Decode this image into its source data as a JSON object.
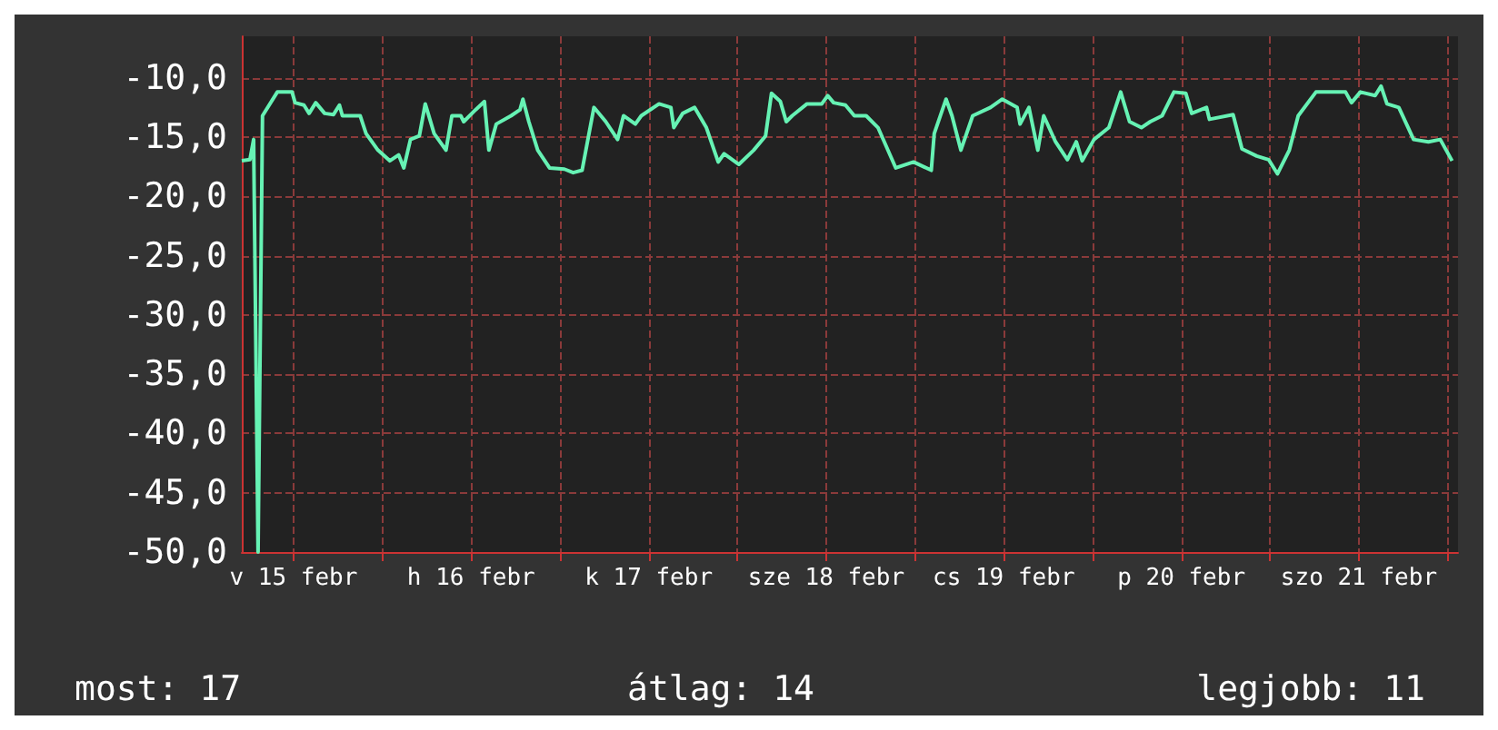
{
  "chart_data": {
    "type": "line",
    "x": [
      "--02-15T05:00",
      "--02-15T06:06",
      "--02-15T06:36",
      "--02-15T07:12",
      "--02-15T07:48",
      "--02-15T09:48",
      "--02-15T11:48",
      "--02-15T12:12",
      "--02-15T13:24",
      "--02-15T14:06",
      "--02-15T15:00",
      "--02-15T16:12",
      "--02-15T17:24",
      "--02-15T18:12",
      "--02-15T18:36",
      "--02-15T21:00",
      "--02-15T21:48",
      "--02-15T23:24",
      "--02-16T01:00",
      "--02-16T02:12",
      "--02-16T02:54",
      "--02-16T03:48",
      "--02-16T05:00",
      "--02-16T05:48",
      "--02-16T07:00",
      "--02-16T08:36",
      "--02-16T09:24",
      "--02-16T10:36",
      "--02-16T11:00",
      "--02-16T12:36",
      "--02-16T13:48",
      "--02-16T14:24",
      "--02-16T15:24",
      "--02-16T17:24",
      "--02-16T18:36",
      "--02-16T19:00",
      "--02-16T19:48",
      "--02-16T21:00",
      "--02-16T22:36",
      "--02-17T00:36",
      "--02-17T01:48",
      "--02-17T03:00",
      "--02-17T04:36",
      "--02-17T06:12",
      "--02-17T07:48",
      "--02-17T08:36",
      "--02-17T10:12",
      "--02-17T11:00",
      "--02-17T13:24",
      "--02-17T15:00",
      "--02-17T15:24",
      "--02-17T16:36",
      "--02-17T18:12",
      "--02-17T19:48",
      "--02-17T21:24",
      "--02-17T22:12",
      "--02-18T00:12",
      "--02-18T02:12",
      "--02-18T03:48",
      "--02-18T04:36",
      "--02-18T05:48",
      "--02-18T06:36",
      "--02-18T07:24",
      "--02-18T09:24",
      "--02-18T11:24",
      "--02-18T12:12",
      "--02-18T13:00",
      "--02-18T14:36",
      "--02-18T15:48",
      "--02-18T17:24",
      "--02-18T19:00",
      "--02-18T21:24",
      "--02-18T23:48",
      "--02-19T02:12",
      "--02-19T02:36",
      "--02-19T04:12",
      "--02-19T05:00",
      "--02-19T06:12",
      "--02-19T07:48",
      "--02-19T10:12",
      "--02-19T11:48",
      "--02-19T13:48",
      "--02-19T14:12",
      "--02-19T15:24",
      "--02-19T16:36",
      "--02-19T17:24",
      "--02-19T19:00",
      "--02-19T20:36",
      "--02-19T21:48",
      "--02-19T22:36",
      "--02-20T00:12",
      "--02-20T02:12",
      "--02-20T03:48",
      "--02-20T05:00",
      "--02-20T06:36",
      "--02-20T07:48",
      "--02-20T09:24",
      "--02-20T11:00",
      "--02-20T12:36",
      "--02-20T13:24",
      "--02-20T15:24",
      "--02-20T15:48",
      "--02-20T19:00",
      "--02-20T20:12",
      "--02-20T22:12",
      "--02-20T23:48",
      "--02-21T01:00",
      "--02-21T02:36",
      "--02-21T03:48",
      "--02-21T06:12",
      "--02-21T10:12",
      "--02-21T11:00",
      "--02-21T12:12",
      "--02-21T14:12",
      "--02-21T15:00",
      "--02-21T15:48",
      "--02-21T17:24",
      "--02-21T19:24",
      "--02-21T21:24",
      "--02-21T23:00",
      "--02-22T00:36"
    ],
    "series": [
      {
        "color": "#66f2b4",
        "values": [
          -17,
          -16.9,
          -15.2,
          -50,
          -13.2,
          -11.2,
          -11.2,
          -12.1,
          -12.3,
          -13,
          -12.1,
          -13,
          -13.1,
          -12.3,
          -13.2,
          -13.2,
          -14.7,
          -16.1,
          -17,
          -16.5,
          -17.6,
          -15.2,
          -14.9,
          -12.2,
          -14.7,
          -16.1,
          -13.2,
          -13.2,
          -13.7,
          -12.7,
          -12,
          -16.1,
          -13.9,
          -13.2,
          -12.7,
          -11.8,
          -13.7,
          -16.1,
          -17.6,
          -17.7,
          -18,
          -17.8,
          -12.5,
          -13.7,
          -15.2,
          -13.2,
          -13.9,
          -13.2,
          -12.2,
          -12.5,
          -14.2,
          -13,
          -12.5,
          -14.2,
          -17.1,
          -16.4,
          -17.3,
          -16.1,
          -14.9,
          -11.3,
          -12,
          -13.7,
          -13.2,
          -12.2,
          -12.2,
          -11.5,
          -12.1,
          -12.3,
          -13.2,
          -13.2,
          -14.2,
          -17.6,
          -17.1,
          -17.8,
          -14.7,
          -11.8,
          -13.2,
          -16.1,
          -13.2,
          -12.5,
          -11.8,
          -12.5,
          -13.9,
          -12.5,
          -16.1,
          -13.2,
          -15.4,
          -16.9,
          -15.4,
          -17,
          -15.2,
          -14.2,
          -11.2,
          -13.7,
          -14.2,
          -13.7,
          -13.2,
          -11.2,
          -11.3,
          -13,
          -12.5,
          -13.5,
          -13.1,
          -16,
          -16.6,
          -16.9,
          -18.1,
          -16.1,
          -13.2,
          -11.2,
          -11.2,
          -12.1,
          -11.2,
          -11.5,
          -10.7,
          -12.2,
          -12.5,
          -15.2,
          -15.4,
          -15.2,
          -17
        ]
      }
    ],
    "xlim": [
      "--02-15T05:00",
      "--02-22T01:24"
    ],
    "xticks": [
      {
        "value": "--02-15T12:00",
        "label": "v 15 febr"
      },
      {
        "value": "--02-16T00:00",
        "label": null
      },
      {
        "value": "--02-16T12:00",
        "label": "h 16 febr"
      },
      {
        "value": "--02-17T00:00",
        "label": null
      },
      {
        "value": "--02-17T12:00",
        "label": "k 17 febr"
      },
      {
        "value": "--02-18T00:00",
        "label": null
      },
      {
        "value": "--02-18T12:00",
        "label": "sze 18 febr"
      },
      {
        "value": "--02-19T00:00",
        "label": null
      },
      {
        "value": "--02-19T12:00",
        "label": "cs 19 febr"
      },
      {
        "value": "--02-20T00:00",
        "label": null
      },
      {
        "value": "--02-20T12:00",
        "label": "p 20 febr"
      },
      {
        "value": "--02-21T00:00",
        "label": null
      },
      {
        "value": "--02-21T12:00",
        "label": "szo 21 febr"
      },
      {
        "value": "--02-22T00:00",
        "label": null
      }
    ],
    "ylim": [
      -50,
      -6.5
    ],
    "yticks": [
      {
        "value": -50,
        "label": "-50,0"
      },
      {
        "value": -45,
        "label": "-45,0"
      },
      {
        "value": -40,
        "label": "-40,0"
      },
      {
        "value": -35,
        "label": "-35,0"
      },
      {
        "value": -30,
        "label": "-30,0"
      },
      {
        "value": -25,
        "label": "-25,0"
      },
      {
        "value": -20,
        "label": "-20,0"
      },
      {
        "value": -15,
        "label": "-15,0"
      },
      {
        "value": -10,
        "label": "-10,0"
      }
    ],
    "grid": true,
    "marker": "none",
    "line_style": "solid",
    "annotations": [
      "most: 17",
      "átlag: 14",
      "legjobb: 11"
    ]
  }
}
